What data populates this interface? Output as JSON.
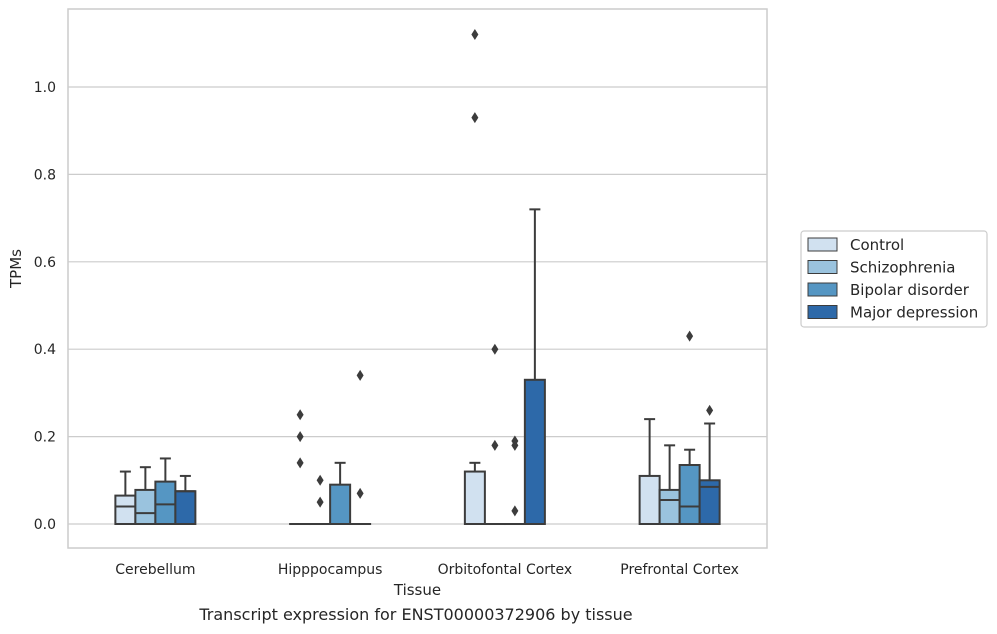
{
  "chart_data": {
    "type": "boxplot",
    "xlabel": "Tissue",
    "ylabel": "TPMs",
    "categories": [
      "Cerebellum",
      "Hipppocampus",
      "Orbitofontal Cortex",
      "Prefrontal Cortex"
    ],
    "ylim": [
      -0.055,
      1.18
    ],
    "yticks": [
      "0.0",
      "0.2",
      "0.4",
      "0.6",
      "0.8",
      "1.0"
    ],
    "grid": "horizontal",
    "legend_position": "right",
    "series": [
      {
        "name": "Control",
        "color": "#d1e1f0",
        "boxes": [
          {
            "q1": 0.0,
            "median": 0.04,
            "q3": 0.065,
            "wlo": 0.0,
            "whi": 0.12,
            "outliers": []
          },
          {
            "q1": 0.0,
            "median": 0.0,
            "q3": 0.0,
            "wlo": 0.0,
            "whi": 0.0,
            "outliers": [
              0.14,
              0.2,
              0.25
            ]
          },
          {
            "q1": 0.0,
            "median": 0.0,
            "q3": 0.12,
            "wlo": 0.0,
            "whi": 0.14,
            "outliers": [
              0.93,
              1.12
            ]
          },
          {
            "q1": 0.0,
            "median": 0.0,
            "q3": 0.11,
            "wlo": 0.0,
            "whi": 0.24,
            "outliers": []
          }
        ]
      },
      {
        "name": "Schizophrenia",
        "color": "#9ac3de",
        "boxes": [
          {
            "q1": 0.0,
            "median": 0.025,
            "q3": 0.078,
            "wlo": 0.0,
            "whi": 0.13,
            "outliers": []
          },
          {
            "q1": 0.0,
            "median": 0.0,
            "q3": 0.0,
            "wlo": 0.0,
            "whi": 0.0,
            "outliers": [
              0.05,
              0.1
            ]
          },
          {
            "q1": 0.0,
            "median": 0.0,
            "q3": 0.0,
            "wlo": 0.0,
            "whi": 0.0,
            "outliers": [
              0.18,
              0.4
            ]
          },
          {
            "q1": 0.0,
            "median": 0.055,
            "q3": 0.078,
            "wlo": 0.0,
            "whi": 0.18,
            "outliers": []
          }
        ]
      },
      {
        "name": "Bipolar disorder",
        "color": "#5596c3",
        "boxes": [
          {
            "q1": 0.0,
            "median": 0.045,
            "q3": 0.097,
            "wlo": 0.0,
            "whi": 0.15,
            "outliers": []
          },
          {
            "q1": 0.0,
            "median": 0.0,
            "q3": 0.09,
            "wlo": 0.0,
            "whi": 0.14,
            "outliers": []
          },
          {
            "q1": 0.0,
            "median": 0.0,
            "q3": 0.0,
            "wlo": 0.0,
            "whi": 0.0,
            "outliers": [
              0.03,
              0.18,
              0.19
            ]
          },
          {
            "q1": 0.0,
            "median": 0.04,
            "q3": 0.135,
            "wlo": 0.0,
            "whi": 0.17,
            "outliers": [
              0.43
            ]
          }
        ]
      },
      {
        "name": "Major depression",
        "color": "#2d69a9",
        "boxes": [
          {
            "q1": 0.0,
            "median": 0.075,
            "q3": 0.075,
            "wlo": 0.0,
            "whi": 0.11,
            "outliers": []
          },
          {
            "q1": 0.0,
            "median": 0.0,
            "q3": 0.0,
            "wlo": 0.0,
            "whi": 0.0,
            "outliers": [
              0.07,
              0.34
            ]
          },
          {
            "q1": 0.0,
            "median": 0.0,
            "q3": 0.33,
            "wlo": 0.0,
            "whi": 0.72,
            "outliers": []
          },
          {
            "q1": 0.0,
            "median": 0.085,
            "q3": 0.1,
            "wlo": 0.0,
            "whi": 0.23,
            "outliers": [
              0.26
            ]
          }
        ]
      }
    ]
  },
  "caption": "Transcript expression for ENST00000372906 by tissue"
}
